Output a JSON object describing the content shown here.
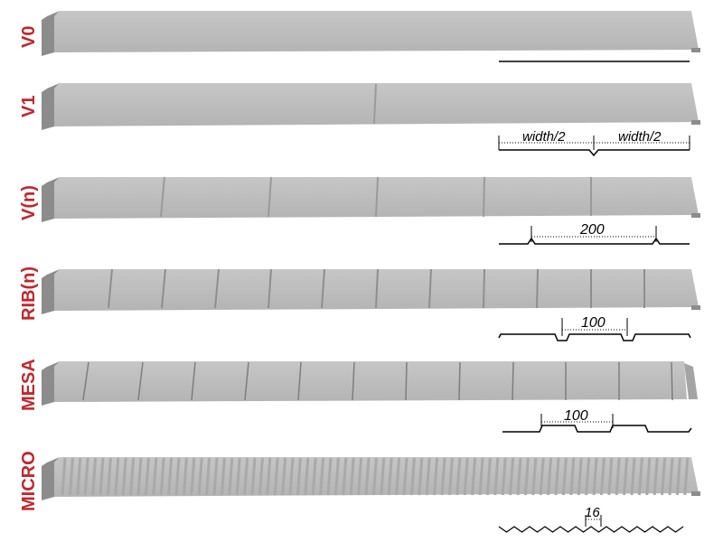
{
  "colors": {
    "label": "#c0272d",
    "panel_face": "#bcbcbc",
    "panel_side": "#8c8c8c",
    "groove": "#9a9a9a",
    "profile_line": "#000000"
  },
  "panels": [
    {
      "id": "v0",
      "label": "V0",
      "profile": "flat",
      "dimension": ""
    },
    {
      "id": "v1",
      "label": "V1",
      "profile": "center-v",
      "dimension_left": "width/2",
      "dimension_right": "width/2"
    },
    {
      "id": "vn",
      "label": "V(n)",
      "profile": "v-groove",
      "dimension": "200"
    },
    {
      "id": "ribn",
      "label": "RIB(n)",
      "profile": "rib",
      "dimension": "100"
    },
    {
      "id": "mesa",
      "label": "MESA",
      "profile": "mesa",
      "dimension": "100"
    },
    {
      "id": "micro",
      "label": "MICRO",
      "profile": "micro-rib",
      "dimension": "16"
    }
  ]
}
